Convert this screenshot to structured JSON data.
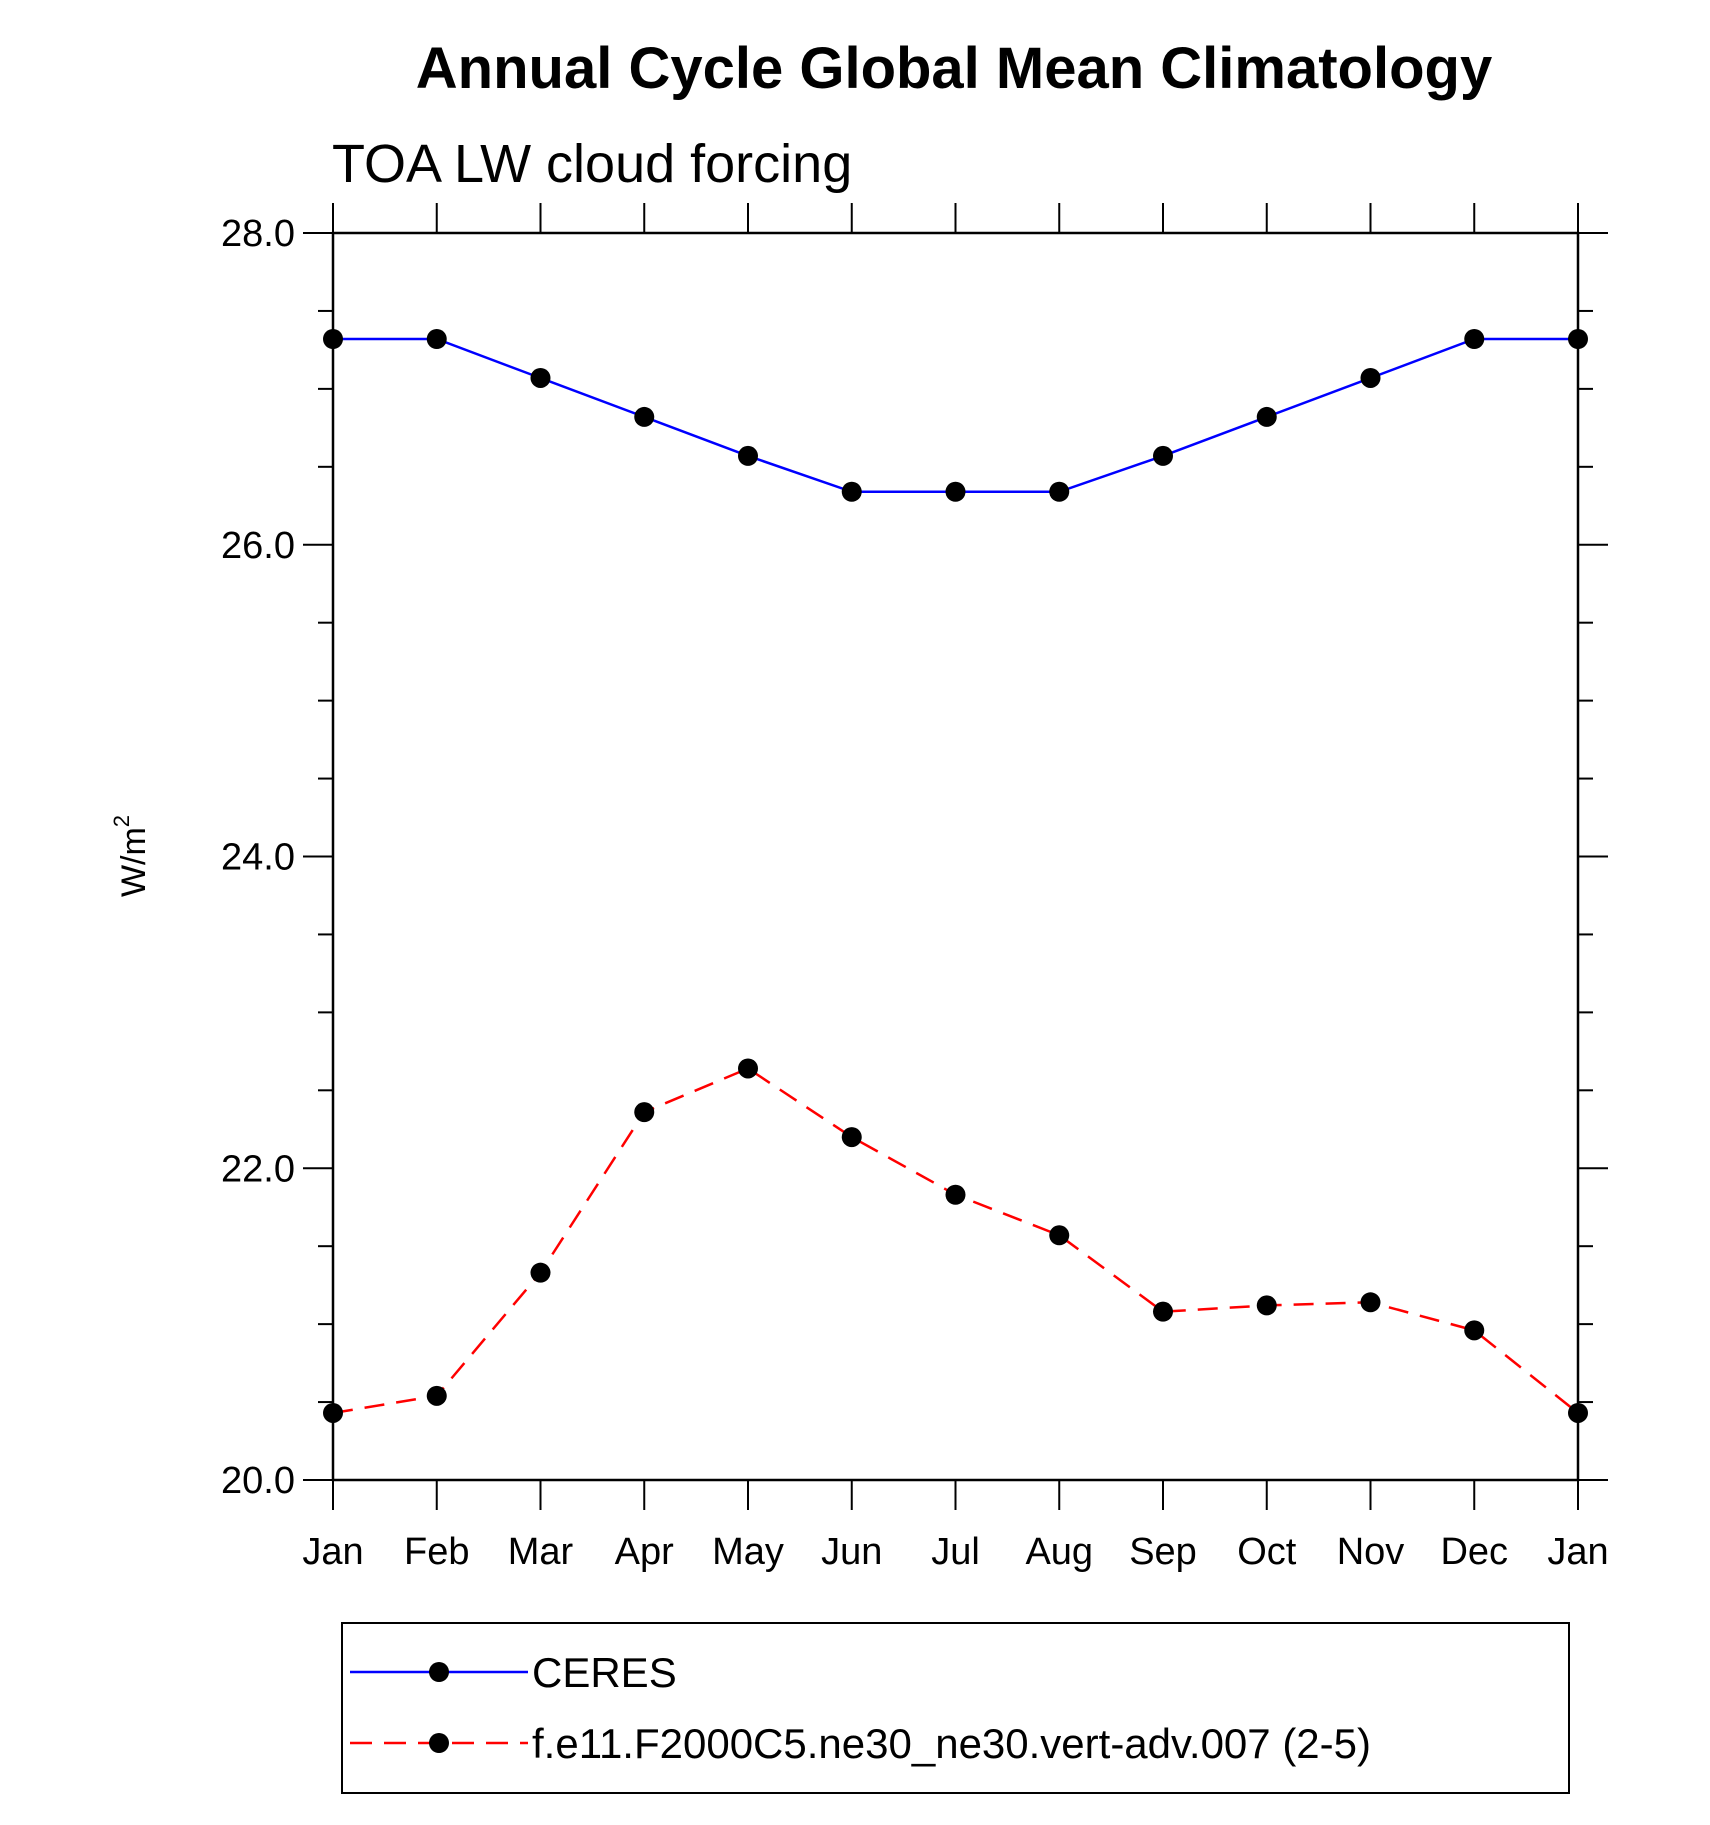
{
  "chart_data": {
    "type": "line",
    "title": "Annual Cycle Global Mean Climatology",
    "subtitle": "TOA LW cloud forcing",
    "xlabel": "",
    "ylabel": "W/m",
    "ylabel_superscript": "2",
    "categories": [
      "Jan",
      "Feb",
      "Mar",
      "Apr",
      "May",
      "Jun",
      "Jul",
      "Aug",
      "Sep",
      "Oct",
      "Nov",
      "Dec",
      "Jan"
    ],
    "ylim": [
      20.0,
      28.0
    ],
    "yticks": [
      20.0,
      22.0,
      24.0,
      26.0,
      28.0
    ],
    "ytick_labels": [
      "20.0",
      "22.0",
      "24.0",
      "26.0",
      "28.0"
    ],
    "y_minor_step": 0.5,
    "legend_position": "bottom",
    "series": [
      {
        "name": "CERES",
        "color": "#0000ff",
        "line_style": "solid",
        "marker": "filled-circle",
        "values": [
          27.32,
          27.32,
          27.07,
          26.82,
          26.57,
          26.34,
          26.34,
          26.34,
          26.57,
          26.82,
          27.07,
          27.32,
          27.32
        ]
      },
      {
        "name": "f.e11.F2000C5.ne30_ne30.vert-adv.007 (2-5)",
        "color": "#ff0000",
        "line_style": "dashed",
        "marker": "filled-circle",
        "values": [
          20.43,
          20.54,
          21.33,
          22.36,
          22.64,
          22.2,
          21.83,
          21.57,
          21.08,
          21.12,
          21.14,
          20.96,
          20.43
        ]
      }
    ]
  }
}
